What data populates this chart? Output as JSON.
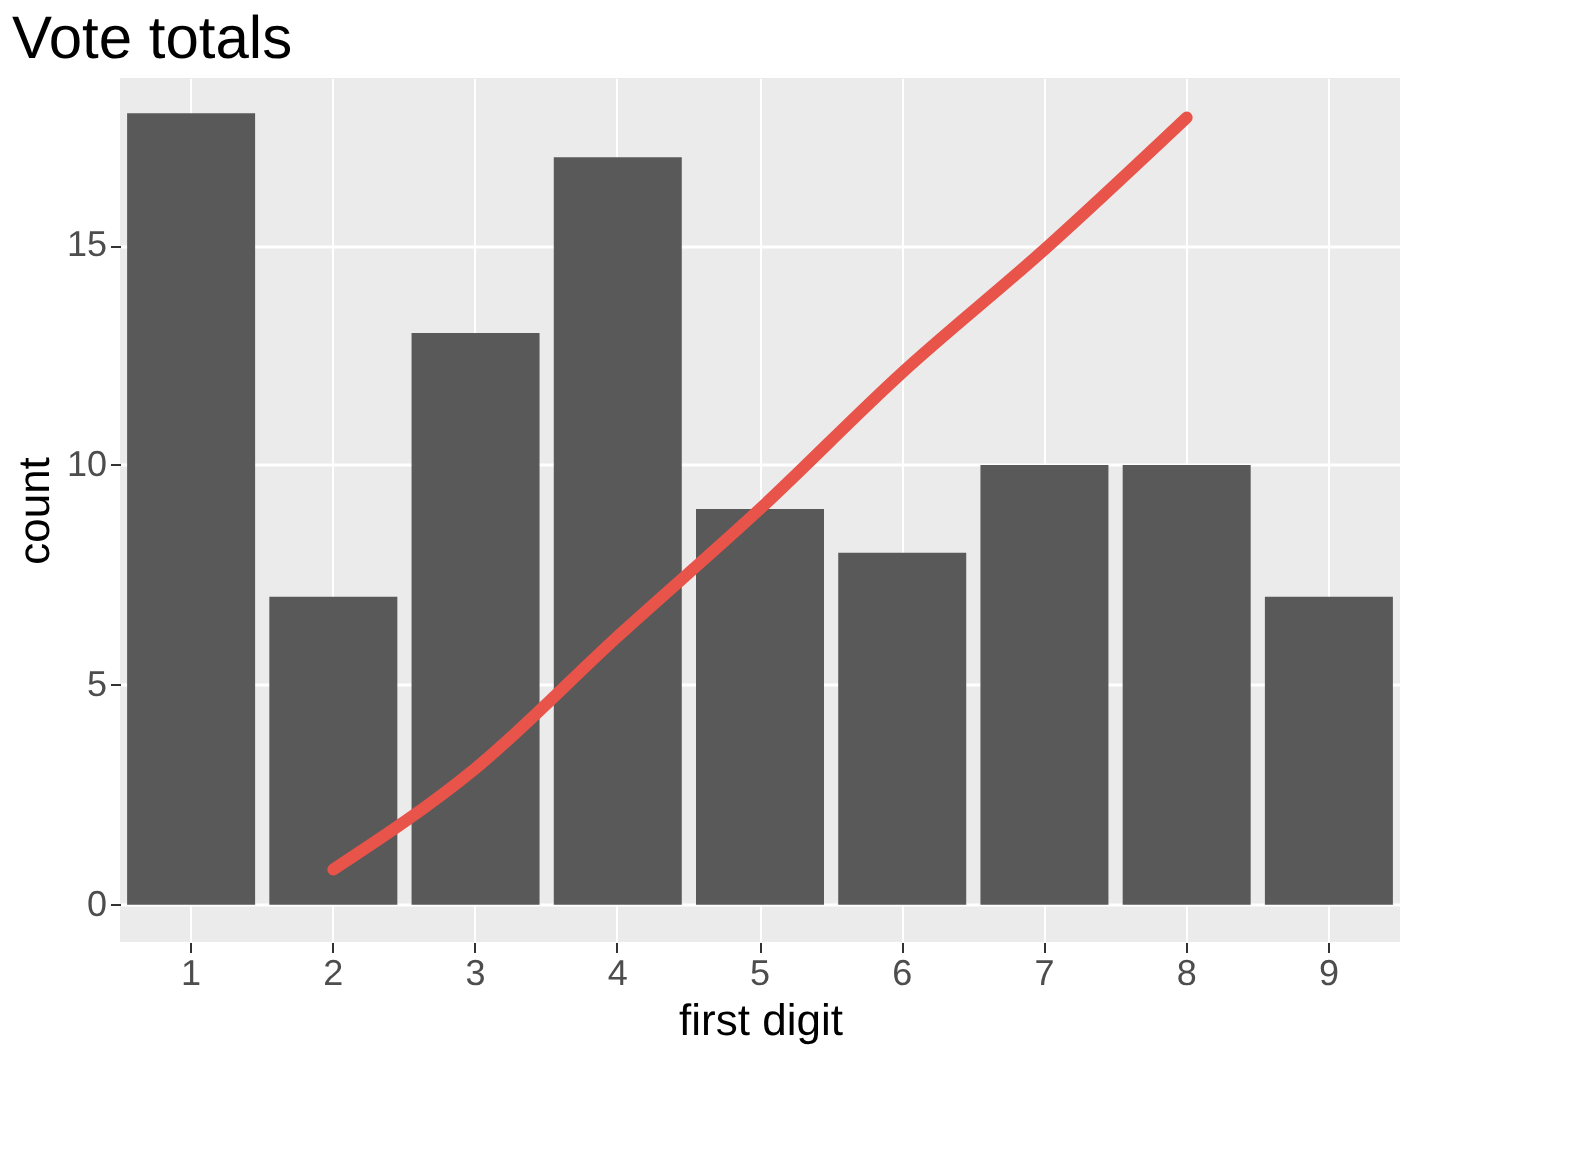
{
  "chart_data": {
    "type": "bar",
    "title": "Vote totals",
    "xlabel": "first digit",
    "ylabel": "count",
    "categories": [
      "1",
      "2",
      "3",
      "4",
      "5",
      "6",
      "7",
      "8",
      "9"
    ],
    "series": [
      {
        "color": "#595959",
        "values": [
          18,
          7,
          13,
          17,
          9,
          8,
          10,
          10,
          7
        ]
      },
      {
        "type": "line",
        "color": "#e8534a",
        "values": [
          null,
          0.8,
          3.1,
          6.1,
          9.0,
          12.1,
          14.9,
          17.9,
          null
        ]
      }
    ],
    "ylim": [
      -0.85,
      18.8
    ],
    "yticks": [
      0,
      5,
      10,
      15
    ],
    "grid": true
  }
}
